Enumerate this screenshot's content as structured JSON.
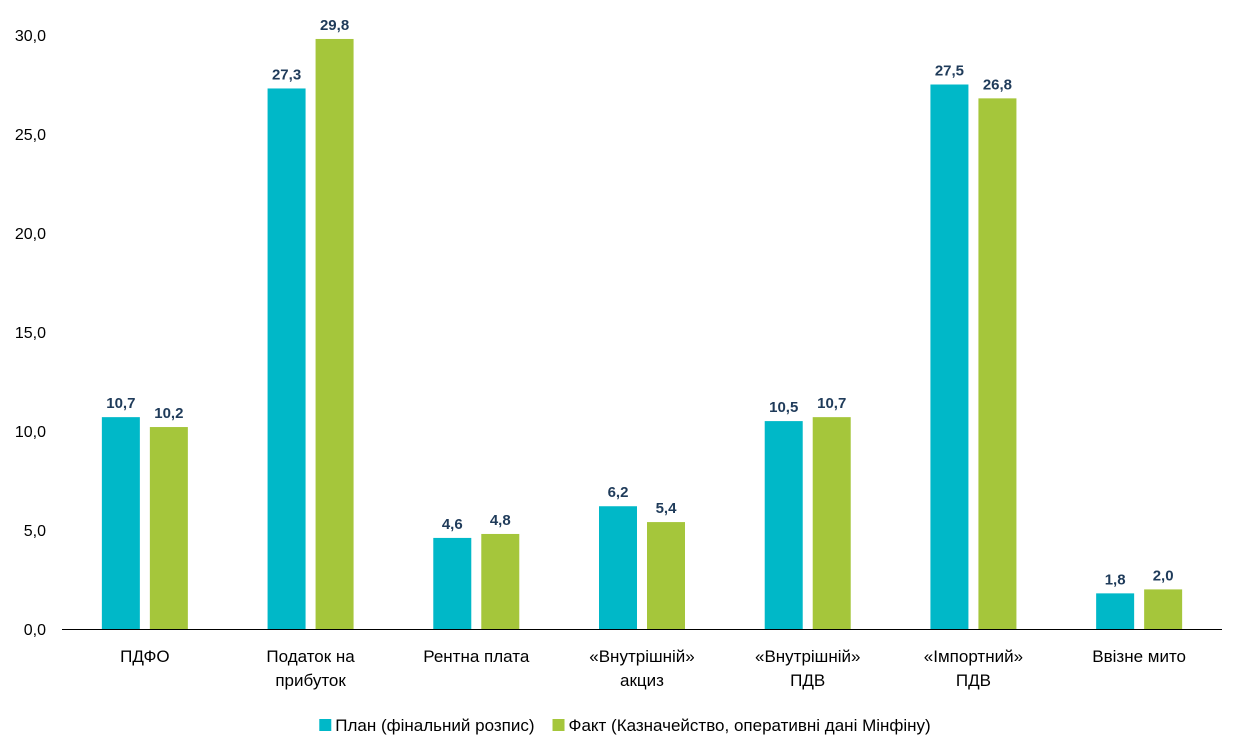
{
  "chart_data": {
    "type": "bar",
    "title": "",
    "xlabel": "",
    "ylabel": "",
    "ylim": [
      0,
      30
    ],
    "yticks": [
      0,
      5,
      10,
      15,
      20,
      25,
      30
    ],
    "ytick_labels": [
      "0,0",
      "5,0",
      "10,0",
      "15,0",
      "20,0",
      "25,0",
      "30,0"
    ],
    "grid": false,
    "legend_position": "bottom",
    "categories": [
      [
        "ПДФО"
      ],
      [
        "Податок на",
        "прибуток"
      ],
      [
        "Рентна плата"
      ],
      [
        "«Внутрішній»",
        "акциз"
      ],
      [
        "«Внутрішній»",
        "ПДВ"
      ],
      [
        "«Імпортний»",
        "ПДВ"
      ],
      [
        "Ввізне мито"
      ]
    ],
    "series": [
      {
        "name": "План (фінальний розпис)",
        "color": "#00b8c8",
        "values": [
          10.7,
          27.3,
          4.6,
          6.2,
          10.5,
          27.5,
          1.8
        ],
        "labels": [
          "10,7",
          "27,3",
          "4,6",
          "6,2",
          "10,5",
          "27,5",
          "1,8"
        ]
      },
      {
        "name": "Факт (Казначейство, оперативні дані Мінфіну)",
        "color": "#a5c63b",
        "values": [
          10.2,
          29.8,
          4.8,
          5.4,
          10.7,
          26.8,
          2.0
        ],
        "labels": [
          "10,2",
          "29,8",
          "4,8",
          "5,4",
          "10,7",
          "26,8",
          "2,0"
        ]
      }
    ],
    "colors": {
      "axis": "#000000",
      "data_label": "#1f3b5a"
    }
  }
}
